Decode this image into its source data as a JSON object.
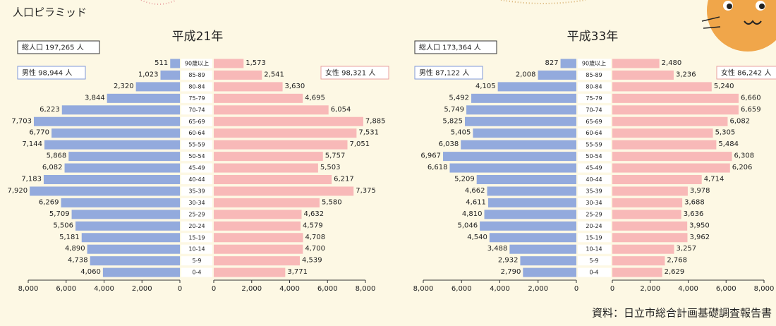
{
  "title": "人口ピラミッド",
  "source": "資料：日立市総合計画基礎調査報告書",
  "chart_data": [
    {
      "type": "pyramid",
      "title": "平成21年",
      "total": "総人口 197,265 人",
      "categories": [
        "90歳以上",
        "85-89",
        "80-84",
        "75-79",
        "70-74",
        "65-69",
        "60-64",
        "55-59",
        "50-54",
        "45-49",
        "40-44",
        "35-39",
        "30-34",
        "25-29",
        "20-24",
        "15-19",
        "10-14",
        "5-9",
        "0-4"
      ],
      "xlim": [
        0,
        8000
      ],
      "xticks": [
        0,
        {
          "value": 2000,
          "label": "2,000"
        },
        {
          "value": 4000,
          "label": "4,000"
        },
        {
          "value": 6000,
          "label": "6,000"
        },
        {
          "value": 8000,
          "label": "8,000"
        }
      ],
      "series": [
        {
          "name": "男性 98,944 人",
          "color": "#93aadd",
          "values": [
            511,
            1023,
            2320,
            3844,
            6223,
            7703,
            6770,
            7144,
            5868,
            6082,
            7183,
            7920,
            6269,
            5709,
            5506,
            5181,
            4890,
            4738,
            4060
          ],
          "value_labels": [
            "511",
            "1,023",
            "2,320",
            "3,844",
            "6,223",
            "7,703",
            "6,770",
            "7,144",
            "5,868",
            "6,082",
            "7,183",
            "7,920",
            "6,269",
            "5,709",
            "5,506",
            "5,181",
            "4,890",
            "4,738",
            "4,060"
          ]
        },
        {
          "name": "女性 98,321 人",
          "color": "#f8b9b8",
          "values": [
            1573,
            2541,
            3630,
            4695,
            6054,
            7885,
            7531,
            7051,
            5757,
            5503,
            6217,
            7375,
            5580,
            4632,
            4579,
            4708,
            4700,
            4539,
            3771
          ],
          "value_labels": [
            "1,573",
            "2,541",
            "3,630",
            "4,695",
            "6,054",
            "7,885",
            "7,531",
            "7,051",
            "5,757",
            "5,503",
            "6,217",
            "7,375",
            "5,580",
            "4,632",
            "4,579",
            "4,708",
            "4,700",
            "4,539",
            "3,771"
          ]
        }
      ]
    },
    {
      "type": "pyramid",
      "title": "平成33年",
      "total": "総人口 173,364 人",
      "categories": [
        "90歳以上",
        "85-89",
        "80-84",
        "75-79",
        "70-74",
        "65-69",
        "60-64",
        "55-59",
        "50-54",
        "45-49",
        "40-44",
        "35-39",
        "30-34",
        "25-29",
        "20-24",
        "15-19",
        "10-14",
        "5-9",
        "0-4"
      ],
      "xlim": [
        0,
        8000
      ],
      "xticks": [
        0,
        {
          "value": 2000,
          "label": "2,000"
        },
        {
          "value": 4000,
          "label": "4,000"
        },
        {
          "value": 6000,
          "label": "6,000"
        },
        {
          "value": 8000,
          "label": "8,000"
        }
      ],
      "series": [
        {
          "name": "男性 87,122 人",
          "color": "#93aadd",
          "values": [
            827,
            2008,
            4105,
            5492,
            5749,
            5825,
            5405,
            6038,
            6967,
            6618,
            5209,
            4662,
            4611,
            4810,
            5046,
            4540,
            3488,
            2932,
            2790
          ],
          "value_labels": [
            "827",
            "2,008",
            "4,105",
            "5,492",
            "5,749",
            "5,825",
            "5,405",
            "6,038",
            "6,967",
            "6,618",
            "5,209",
            "4,662",
            "4,611",
            "4,810",
            "5,046",
            "4,540",
            "3,488",
            "2,932",
            "2,790"
          ]
        },
        {
          "name": "女性 86,242 人",
          "color": "#f8b9b8",
          "values": [
            2480,
            3236,
            5240,
            6660,
            6659,
            6082,
            5305,
            5484,
            6308,
            6206,
            4714,
            3978,
            3688,
            3636,
            3950,
            3962,
            3257,
            2768,
            2629
          ],
          "value_labels": [
            "2,480",
            "3,236",
            "5,240",
            "6,660",
            "6,659",
            "6,082",
            "5,305",
            "5,484",
            "6,308",
            "6,206",
            "4,714",
            "3,978",
            "3,688",
            "3,636",
            "3,950",
            "3,962",
            "3,257",
            "2,768",
            "2,629"
          ]
        }
      ]
    }
  ]
}
